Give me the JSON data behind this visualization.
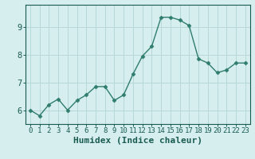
{
  "x": [
    0,
    1,
    2,
    3,
    4,
    5,
    6,
    7,
    8,
    9,
    10,
    11,
    12,
    13,
    14,
    15,
    16,
    17,
    18,
    19,
    20,
    21,
    22,
    23
  ],
  "y": [
    6.0,
    5.8,
    6.2,
    6.4,
    6.0,
    6.35,
    6.55,
    6.85,
    6.85,
    6.35,
    6.55,
    7.3,
    7.95,
    8.3,
    9.35,
    9.35,
    9.25,
    9.05,
    7.85,
    7.7,
    7.35,
    7.45,
    7.7,
    7.7
  ],
  "line_color": "#2e7d6e",
  "marker": "D",
  "marker_size": 2.5,
  "bg_color": "#d6eeee",
  "grid_color": "#b8d8d8",
  "axis_label_color": "#1a5c50",
  "tick_color": "#1a5c50",
  "xlabel": "Humidex (Indice chaleur)",
  "ylim": [
    5.5,
    9.8
  ],
  "yticks": [
    6,
    7,
    8,
    9
  ],
  "xlim": [
    -0.5,
    23.5
  ],
  "tick_fontsize": 6.5,
  "xlabel_fontsize": 8
}
